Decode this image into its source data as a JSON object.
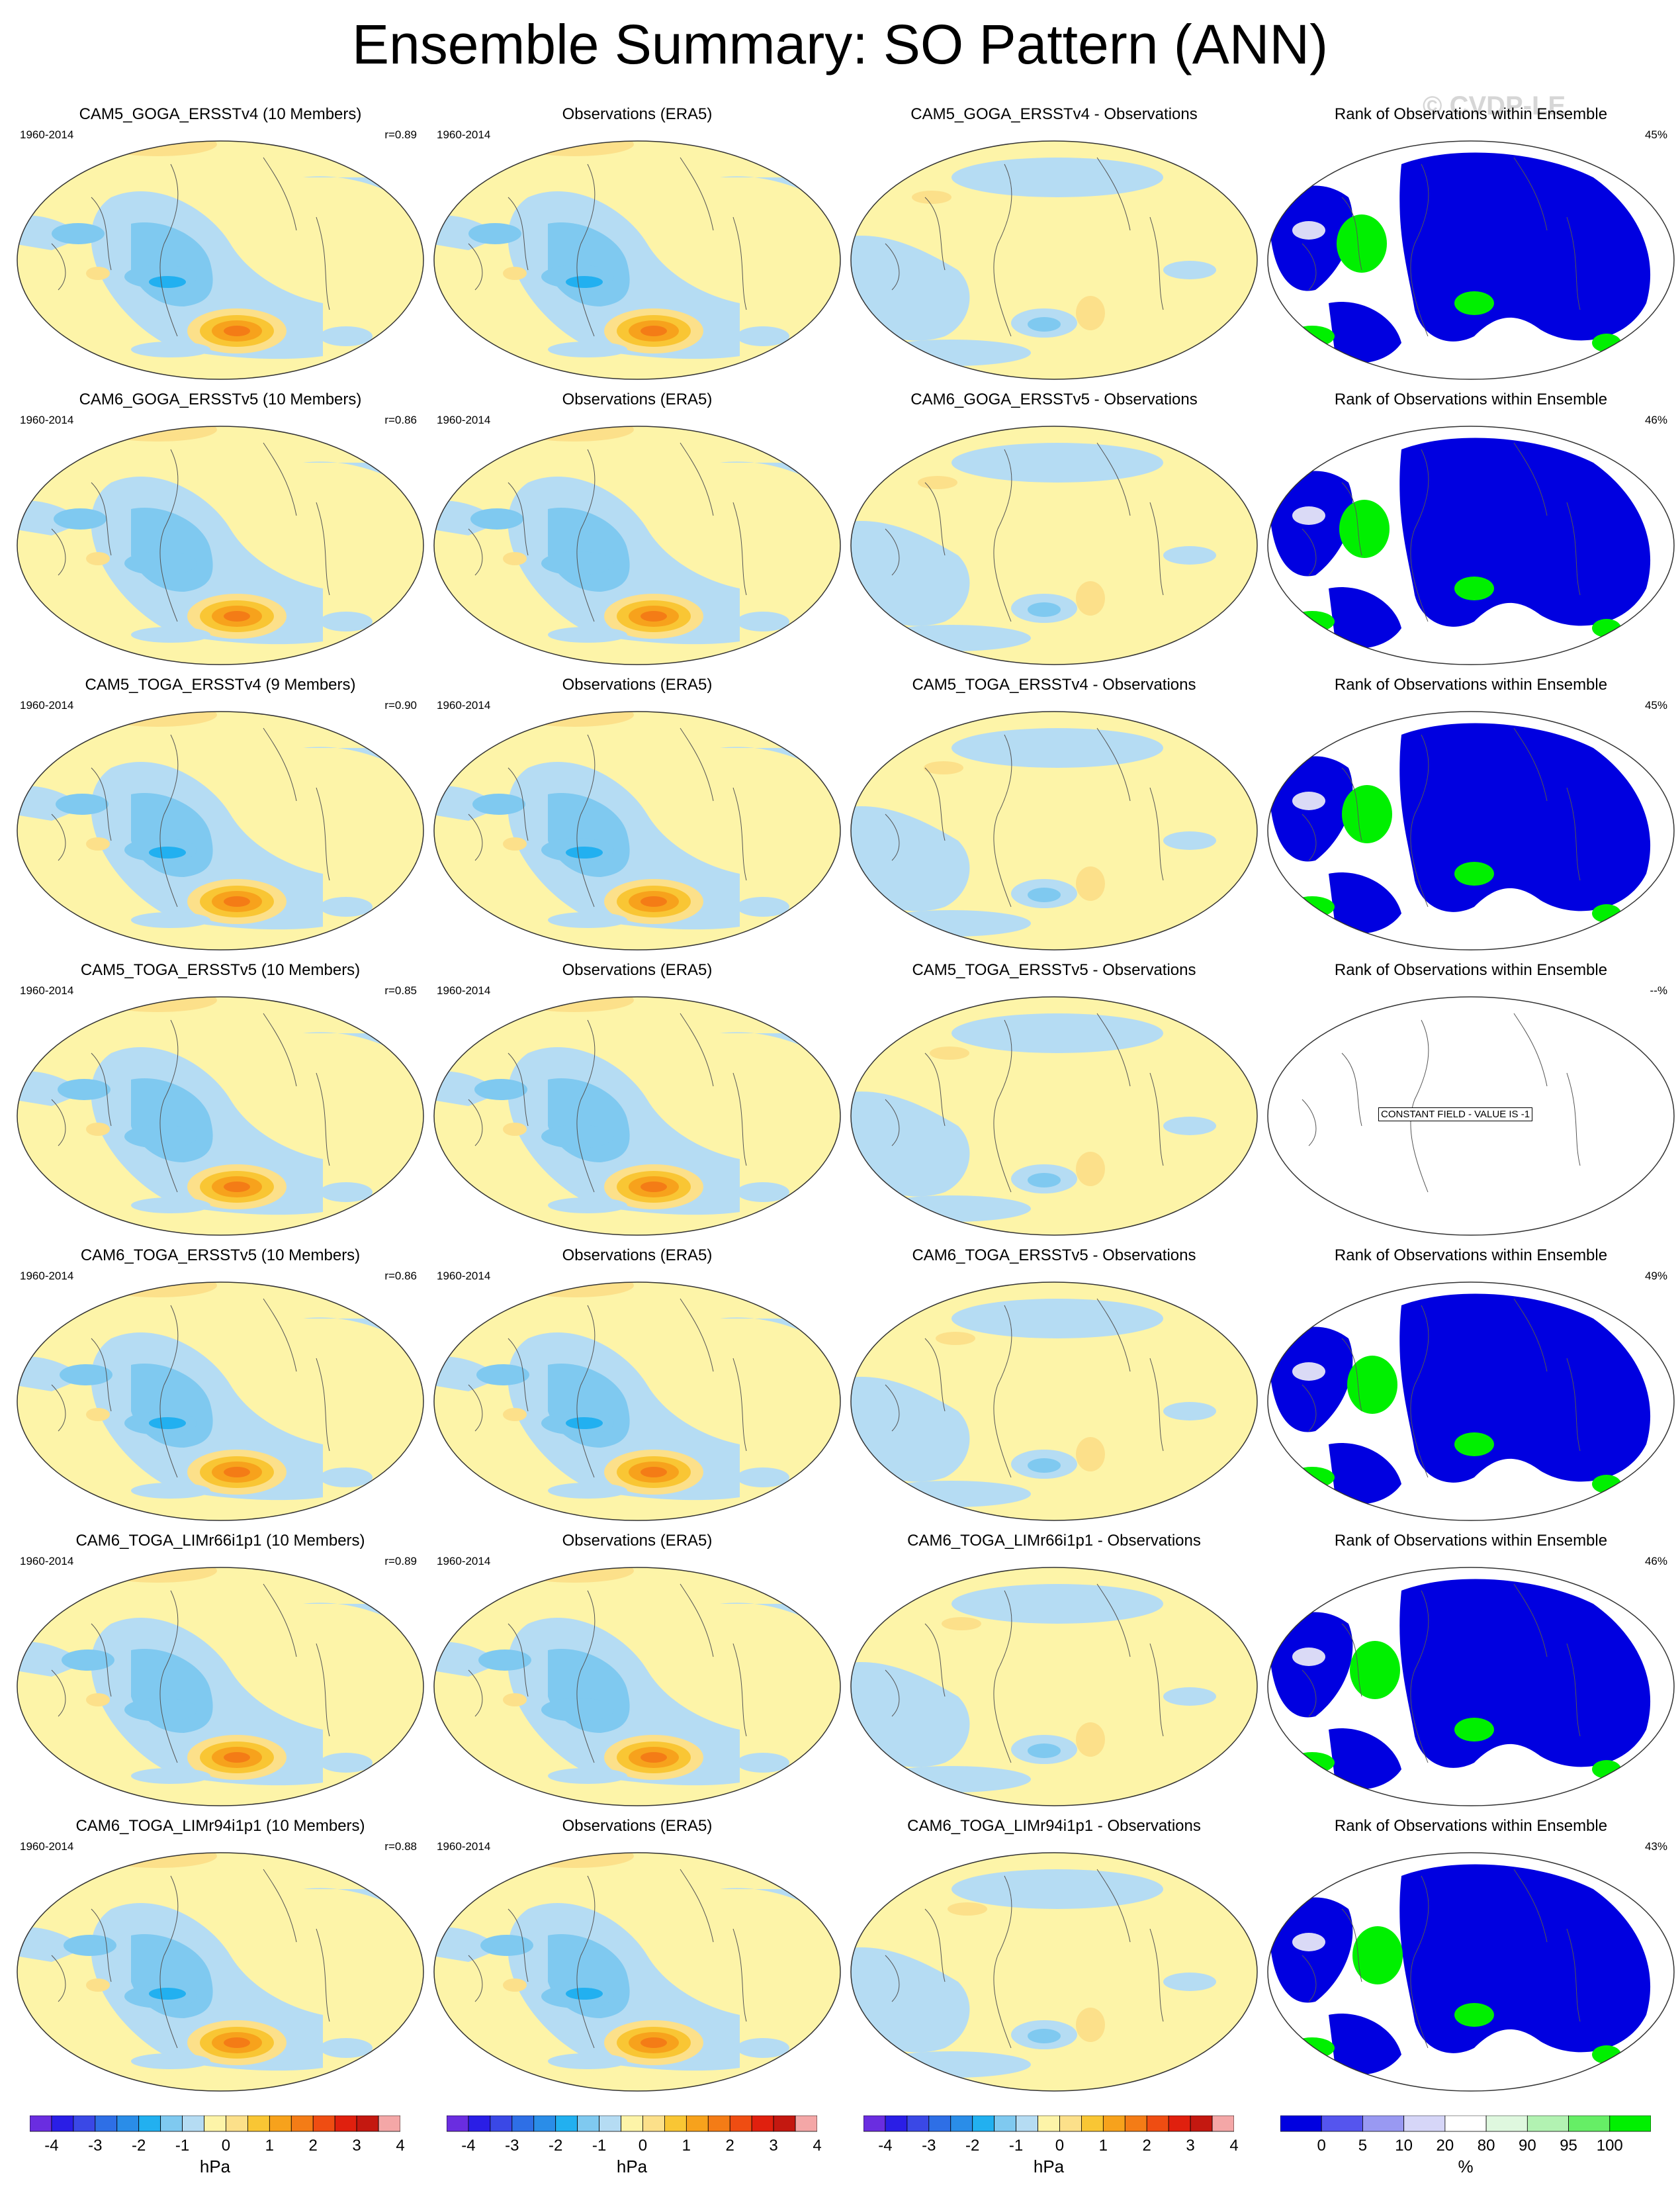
{
  "title": "Ensemble Summary: SO Pattern (ANN)",
  "watermark": "© CVDP-LE",
  "colors": {
    "neg4": "#6a2de0",
    "neg35": "#2a1ee6",
    "neg3": "#3a48e6",
    "neg25": "#2e6fe6",
    "neg2": "#2a8de8",
    "neg15": "#22b0f0",
    "neg1": "#7fc9f0",
    "neg05": "#b5dcf3",
    "zero": "#fdf4a8",
    "pos05": "#fce08a",
    "pos1": "#f9c634",
    "pos15": "#f7a21c",
    "pos2": "#f47c16",
    "pos25": "#ef4d12",
    "pos3": "#e0200e",
    "pos35": "#c41810",
    "pos4": "#f4a7a7",
    "rank_blue": "#0000e0",
    "rank_green": "#00f000"
  },
  "rows": [
    {
      "ens": "CAM5_GOGA_ERSSTv4 (10 Members)",
      "period": "1960-2014",
      "r": "r=0.89",
      "obs": "Observations (ERA5)",
      "diff": "CAM5_GOGA_ERSSTv4 - Observations",
      "rank": "Rank of Observations within Ensemble",
      "pct": "45%"
    },
    {
      "ens": "CAM6_GOGA_ERSSTv5 (10 Members)",
      "period": "1960-2014",
      "r": "r=0.86",
      "obs": "Observations (ERA5)",
      "diff": "CAM6_GOGA_ERSSTv5 - Observations",
      "rank": "Rank of Observations within Ensemble",
      "pct": "46%"
    },
    {
      "ens": "CAM5_TOGA_ERSSTv4 (9 Members)",
      "period": "1960-2014",
      "r": "r=0.90",
      "obs": "Observations (ERA5)",
      "diff": "CAM5_TOGA_ERSSTv4 - Observations",
      "rank": "Rank of Observations within Ensemble",
      "pct": "45%"
    },
    {
      "ens": "CAM5_TOGA_ERSSTv5 (10 Members)",
      "period": "1960-2014",
      "r": "r=0.85",
      "obs": "Observations (ERA5)",
      "diff": "CAM5_TOGA_ERSSTv5 - Observations",
      "rank": "Rank of Observations within Ensemble",
      "pct": "--%",
      "constant": "CONSTANT FIELD - VALUE IS -1"
    },
    {
      "ens": "CAM6_TOGA_ERSSTv5 (10 Members)",
      "period": "1960-2014",
      "r": "r=0.86",
      "obs": "Observations (ERA5)",
      "diff": "CAM6_TOGA_ERSSTv5 - Observations",
      "rank": "Rank of Observations within Ensemble",
      "pct": "49%"
    },
    {
      "ens": "CAM6_TOGA_LIMr66i1p1 (10 Members)",
      "period": "1960-2014",
      "r": "r=0.89",
      "obs": "Observations (ERA5)",
      "diff": "CAM6_TOGA_LIMr66i1p1 - Observations",
      "rank": "Rank of Observations within Ensemble",
      "pct": "46%"
    },
    {
      "ens": "CAM6_TOGA_LIMr94i1p1 (10 Members)",
      "period": "1960-2014",
      "r": "r=0.88",
      "obs": "Observations (ERA5)",
      "diff": "CAM6_TOGA_LIMr94i1p1 - Observations",
      "rank": "Rank of Observations within Ensemble",
      "pct": "43%"
    }
  ],
  "colorbar_hpa": {
    "ticks": [
      "-4",
      "-3",
      "-2",
      "-1",
      "0",
      "1",
      "2",
      "3",
      "4"
    ],
    "unit": "hPa"
  },
  "colorbar_rank": {
    "ticks": [
      "0",
      "5",
      "10",
      "20",
      "80",
      "90",
      "95",
      "100"
    ],
    "unit": "%"
  }
}
